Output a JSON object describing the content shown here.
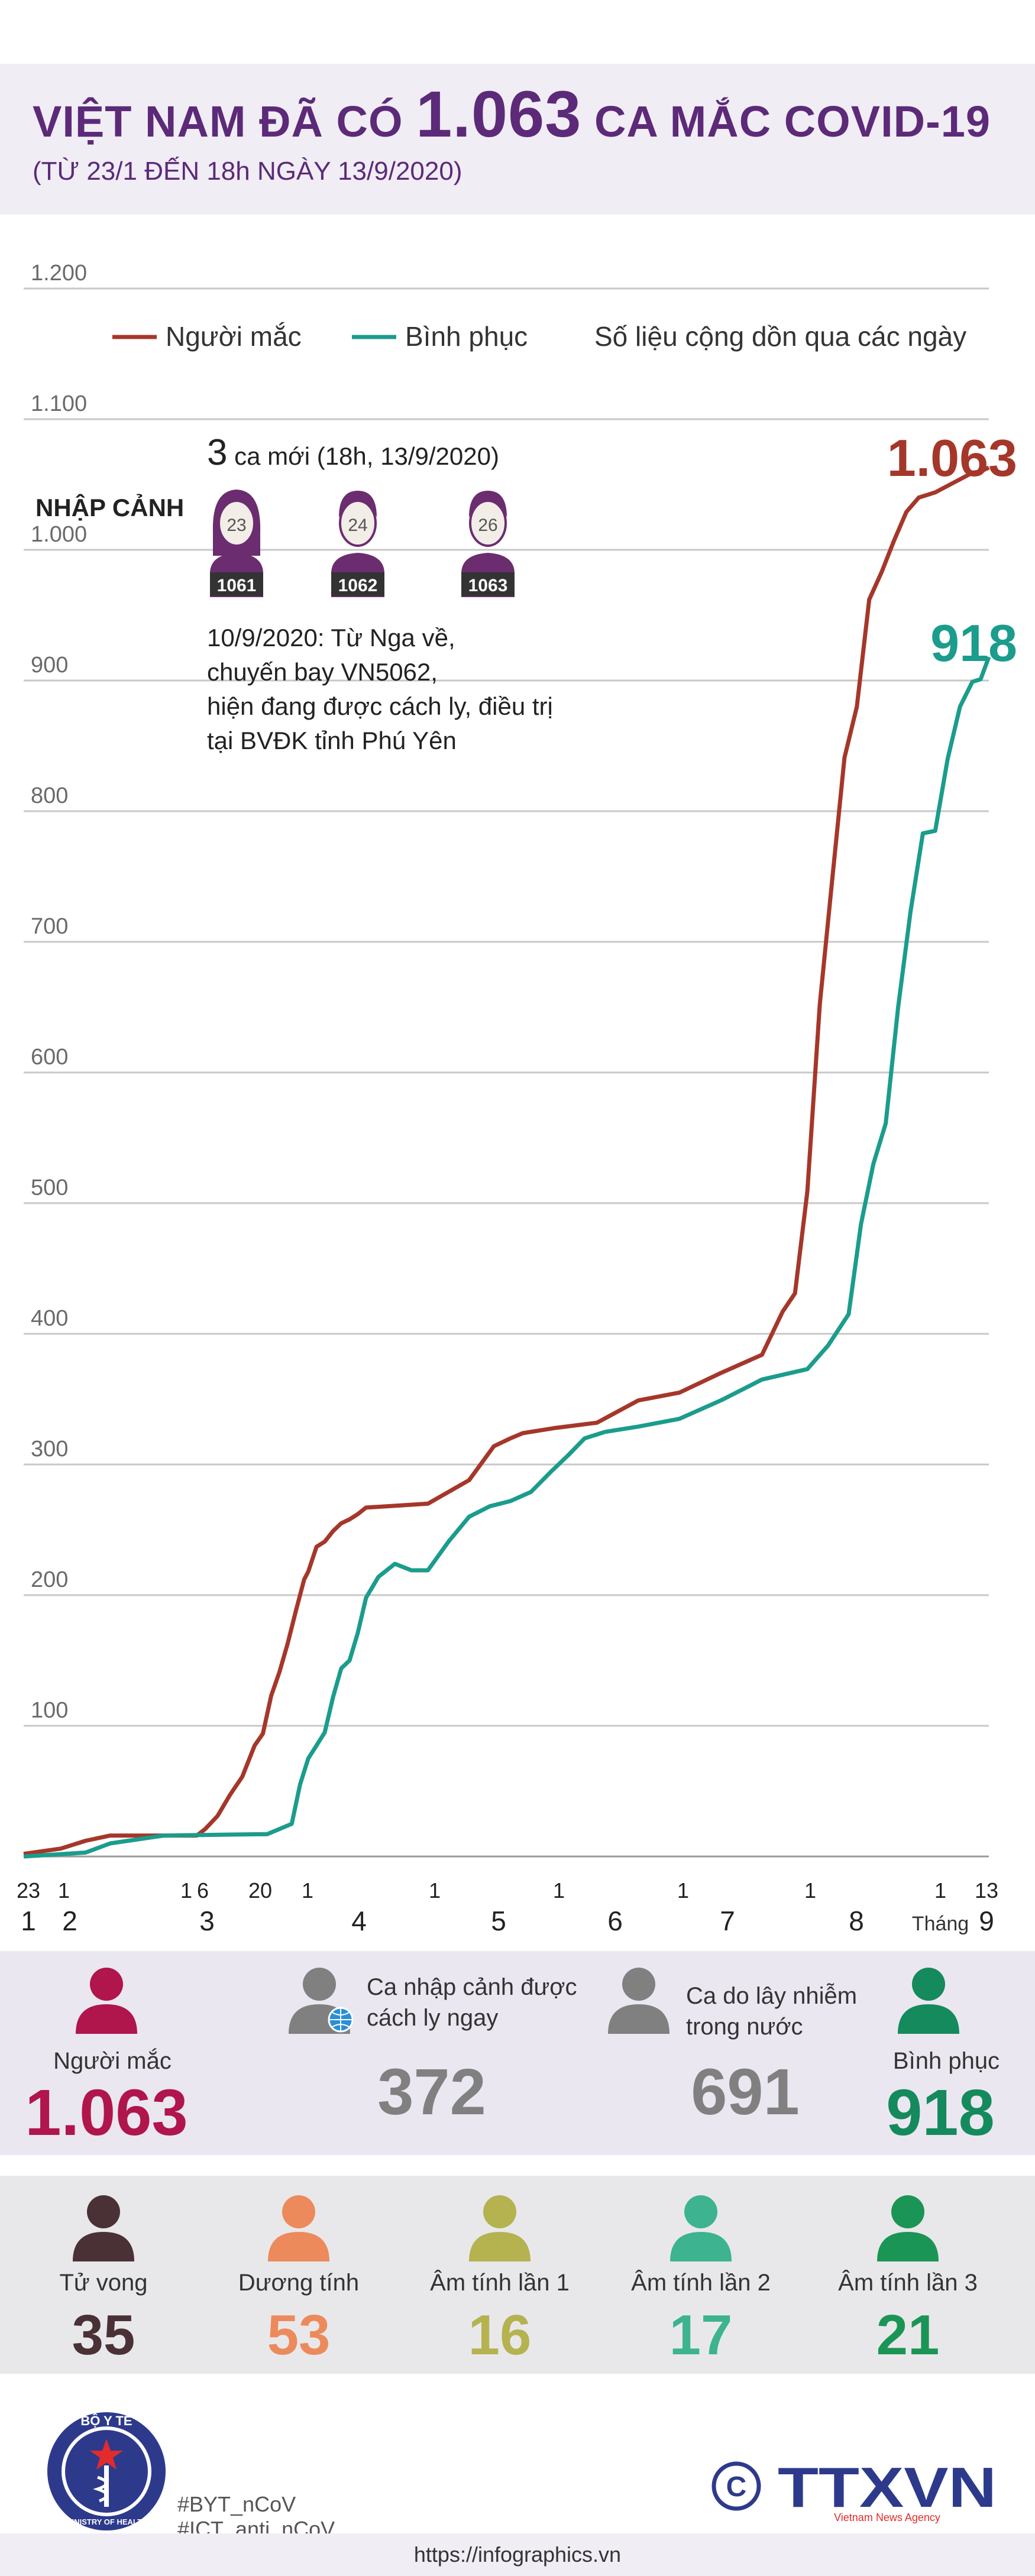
{
  "header": {
    "title_prefix": "VIỆT NAM ĐÃ CÓ ",
    "title_number": "1.063",
    "title_suffix": " CA MẮC COVID-19",
    "subtitle": "(TỪ 23/1 ĐẾN 18h NGÀY 13/9/2020)"
  },
  "chart_data": {
    "type": "line",
    "ylim": [
      0,
      1200
    ],
    "yticks": [
      "100",
      "200",
      "300",
      "400",
      "500",
      "600",
      "700",
      "800",
      "900",
      "1.000",
      "1.100",
      "1.200"
    ],
    "x_ticks_day": [
      "23",
      "1",
      "1",
      "6",
      "20",
      "1",
      "1",
      "1",
      "1",
      "1",
      "1",
      "13"
    ],
    "x_ticks_month": [
      "1",
      "2",
      "3",
      "4",
      "5",
      "6",
      "7",
      "8",
      "Tháng",
      "9"
    ],
    "legend": [
      "Người mắc",
      "Bình phục"
    ],
    "note": "Số liệu cộng dồn qua các ngày",
    "series": [
      {
        "name": "Người mắc",
        "color": "#a5372a",
        "end_label": "1.063",
        "points": [
          [
            "2020-01-23",
            2
          ],
          [
            "2020-02-01",
            6
          ],
          [
            "2020-02-07",
            12
          ],
          [
            "2020-02-13",
            16
          ],
          [
            "2020-03-05",
            16
          ],
          [
            "2020-03-07",
            21
          ],
          [
            "2020-03-10",
            31
          ],
          [
            "2020-03-13",
            47
          ],
          [
            "2020-03-16",
            61
          ],
          [
            "2020-03-19",
            85
          ],
          [
            "2020-03-21",
            94
          ],
          [
            "2020-03-23",
            123
          ],
          [
            "2020-03-25",
            141
          ],
          [
            "2020-03-27",
            163
          ],
          [
            "2020-03-29",
            188
          ],
          [
            "2020-03-31",
            212
          ],
          [
            "2020-04-01",
            218
          ],
          [
            "2020-04-03",
            237
          ],
          [
            "2020-04-05",
            241
          ],
          [
            "2020-04-07",
            249
          ],
          [
            "2020-04-09",
            255
          ],
          [
            "2020-04-11",
            258
          ],
          [
            "2020-04-13",
            262
          ],
          [
            "2020-04-15",
            267
          ],
          [
            "2020-04-20",
            268
          ],
          [
            "2020-04-30",
            270
          ],
          [
            "2020-05-10",
            288
          ],
          [
            "2020-05-16",
            314
          ],
          [
            "2020-05-20",
            320
          ],
          [
            "2020-05-23",
            324
          ],
          [
            "2020-05-31",
            328
          ],
          [
            "2020-06-10",
            332
          ],
          [
            "2020-06-20",
            349
          ],
          [
            "2020-06-30",
            355
          ],
          [
            "2020-07-10",
            370
          ],
          [
            "2020-07-20",
            384
          ],
          [
            "2020-07-25",
            417
          ],
          [
            "2020-07-28",
            431
          ],
          [
            "2020-07-31",
            509
          ],
          [
            "2020-08-03",
            652
          ],
          [
            "2020-08-06",
            747
          ],
          [
            "2020-08-09",
            841
          ],
          [
            "2020-08-12",
            880
          ],
          [
            "2020-08-15",
            962
          ],
          [
            "2020-08-18",
            983
          ],
          [
            "2020-08-21",
            1007
          ],
          [
            "2020-08-24",
            1029
          ],
          [
            "2020-08-27",
            1040
          ],
          [
            "2020-08-31",
            1044
          ],
          [
            "2020-09-03",
            1049
          ],
          [
            "2020-09-06",
            1054
          ],
          [
            "2020-09-09",
            1059
          ],
          [
            "2020-09-11",
            1060
          ],
          [
            "2020-09-13",
            1063
          ]
        ]
      },
      {
        "name": "Bình phục",
        "color": "#1b9c8c",
        "end_label": "918",
        "points": [
          [
            "2020-01-23",
            0
          ],
          [
            "2020-02-07",
            3
          ],
          [
            "2020-02-13",
            10
          ],
          [
            "2020-02-26",
            16
          ],
          [
            "2020-03-20",
            17
          ],
          [
            "2020-03-22",
            17
          ],
          [
            "2020-03-25",
            21
          ],
          [
            "2020-03-28",
            25
          ],
          [
            "2020-03-30",
            55
          ],
          [
            "2020-04-01",
            75
          ],
          [
            "2020-04-03",
            85
          ],
          [
            "2020-04-05",
            95
          ],
          [
            "2020-04-07",
            122
          ],
          [
            "2020-04-09",
            144
          ],
          [
            "2020-04-11",
            150
          ],
          [
            "2020-04-13",
            171
          ],
          [
            "2020-04-15",
            198
          ],
          [
            "2020-04-18",
            214
          ],
          [
            "2020-04-22",
            224
          ],
          [
            "2020-04-26",
            219
          ],
          [
            "2020-04-30",
            219
          ],
          [
            "2020-05-05",
            241
          ],
          [
            "2020-05-10",
            260
          ],
          [
            "2020-05-15",
            268
          ],
          [
            "2020-05-20",
            272
          ],
          [
            "2020-05-25",
            279
          ],
          [
            "2020-05-30",
            295
          ],
          [
            "2020-06-03",
            307
          ],
          [
            "2020-06-07",
            320
          ],
          [
            "2020-06-12",
            325
          ],
          [
            "2020-06-20",
            329
          ],
          [
            "2020-06-30",
            335
          ],
          [
            "2020-07-10",
            349
          ],
          [
            "2020-07-20",
            365
          ],
          [
            "2020-07-31",
            373
          ],
          [
            "2020-08-05",
            391
          ],
          [
            "2020-08-10",
            415
          ],
          [
            "2020-08-13",
            484
          ],
          [
            "2020-08-16",
            530
          ],
          [
            "2020-08-19",
            561
          ],
          [
            "2020-08-22",
            650
          ],
          [
            "2020-08-25",
            723
          ],
          [
            "2020-08-28",
            783
          ],
          [
            "2020-08-31",
            785
          ],
          [
            "2020-09-03",
            840
          ],
          [
            "2020-09-06",
            880
          ],
          [
            "2020-09-09",
            899
          ],
          [
            "2020-09-11",
            901
          ],
          [
            "2020-09-13",
            918
          ]
        ]
      }
    ]
  },
  "new_cases": {
    "count": "3",
    "text": " ca mới (18h, 13/9/2020)",
    "label": "NHẬP CẢNH",
    "patients": [
      {
        "age": "23",
        "id": "1061",
        "gender": "female"
      },
      {
        "age": "24",
        "id": "1062",
        "gender": "male"
      },
      {
        "age": "26",
        "id": "1063",
        "gender": "male"
      }
    ],
    "note_lines": [
      "10/9/2020: Từ Nga về,",
      "chuyến bay VN5062,",
      "hiện đang được cách ly, điều trị",
      "tại BVĐK tỉnh Phú Yên"
    ]
  },
  "stats_top": [
    {
      "label": "Người mắc",
      "value": "1.063",
      "color": "#b0154c",
      "icon": "person-icon"
    },
    {
      "label": "Ca nhập cảnh được cách ly ngay",
      "value": "372",
      "color": "#808080",
      "icon": "person-globe-icon"
    },
    {
      "label": "Ca do lây nhiễm trong nước",
      "value": "691",
      "color": "#808080",
      "icon": "person-icon"
    },
    {
      "label": "Bình phục",
      "value": "918",
      "color": "#158a5d",
      "icon": "person-icon"
    }
  ],
  "stats_bottom": [
    {
      "label": "Tử vong",
      "value": "35",
      "color": "#4a3135"
    },
    {
      "label": "Dương tính",
      "value": "53",
      "color": "#ec8a5c"
    },
    {
      "label": "Âm tính lần 1",
      "value": "16",
      "color": "#b5b250"
    },
    {
      "label": "Âm tính lần 2",
      "value": "17",
      "color": "#3db38f"
    },
    {
      "label": "Âm tính lần 3",
      "value": "21",
      "color": "#1b9555"
    }
  ],
  "footer": {
    "ministry_top": "BỘ Y TẾ",
    "ministry_bottom": "MINISTRY OF HEALTH",
    "hashtags": [
      "#BYT_nCoV",
      "#ICT_anti_nCoV"
    ],
    "agency_logo": "TTXVN",
    "agency_sub": "Vietnam News Agency",
    "url": "https://infographics.vn"
  }
}
